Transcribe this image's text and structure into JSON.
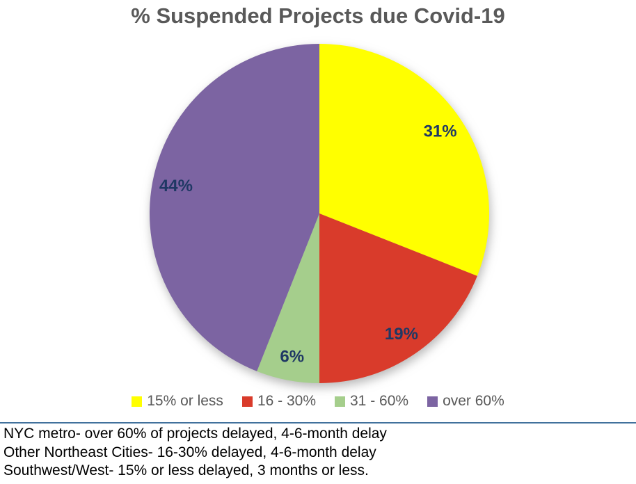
{
  "title": "% Suspended Projects due Covid-19",
  "colors": {
    "title_text": "#595959",
    "slice_label_text": "#1F3864",
    "legend_text": "#595959",
    "divider_line": "#41719C",
    "footer_text": "#000000",
    "background": "#FFFFFF"
  },
  "chart_data": {
    "type": "pie",
    "title": "% Suspended Projects due Covid-19",
    "start_angle_deg": 0,
    "direction": "clockwise",
    "legend_position": "bottom",
    "categories": [
      "15% or less",
      "16 - 30%",
      "31 - 60%",
      "over 60%"
    ],
    "values": [
      31,
      19,
      6,
      44
    ],
    "slices": [
      {
        "label": "15% or less",
        "value": 31,
        "display": "31%",
        "color": "#FFFF00"
      },
      {
        "label": "16 - 30%",
        "value": 19,
        "display": "19%",
        "color": "#D93B2B"
      },
      {
        "label": "31 - 60%",
        "value": 6,
        "display": "6%",
        "color": "#A5CE8C"
      },
      {
        "label": "over 60%",
        "value": 44,
        "display": "44%",
        "color": "#7C64A2"
      }
    ]
  },
  "footer": {
    "lines": [
      "NYC metro- over 60% of projects delayed, 4-6-month delay",
      "Other Northeast Cities- 16-30% delayed, 4-6-month delay",
      "Southwest/West- 15% or less delayed, 3 months or less."
    ]
  }
}
